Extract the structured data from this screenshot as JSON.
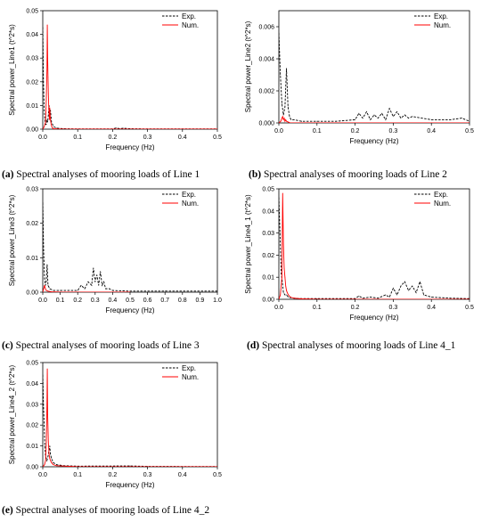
{
  "chart_data": [
    {
      "id": "a",
      "type": "line",
      "caption_label": "(a)",
      "caption_text": "Spectral analyses of mooring loads of Line 1",
      "xlabel": "Frequency (Hz)",
      "ylabel": "Spectral power_Line1 (t^2*s)",
      "xlim": [
        0,
        0.5
      ],
      "ylim": [
        0,
        0.05
      ],
      "xticks": [
        "0.0",
        "0.1",
        "0.2",
        "0.3",
        "0.4",
        "0.5"
      ],
      "yticks": [
        "0.00",
        "0.01",
        "0.02",
        "0.03",
        "0.04",
        "0.05"
      ],
      "legend": [
        "Exp.",
        "Num."
      ],
      "legend_position": "top-right",
      "series": [
        {
          "name": "Exp.",
          "style": "dashed",
          "color": "#000000",
          "x": [
            0.0,
            0.002,
            0.004,
            0.006,
            0.008,
            0.01,
            0.012,
            0.014,
            0.016,
            0.018,
            0.02,
            0.022,
            0.025,
            0.028,
            0.032,
            0.04,
            0.06,
            0.1,
            0.2,
            0.21,
            0.22,
            0.23,
            0.25,
            0.3,
            0.4,
            0.5
          ],
          "y": [
            0.043,
            0.02,
            0.008,
            0.004,
            0.002,
            0.002,
            0.004,
            0.003,
            0.006,
            0.01,
            0.006,
            0.008,
            0.003,
            0.002,
            0.001,
            0.0004,
            0.0002,
            0.0001,
            0.0001,
            0.0005,
            0.0002,
            0.0004,
            0.0002,
            0.0001,
            0.0001,
            0.0001
          ]
        },
        {
          "name": "Num.",
          "style": "solid",
          "color": "#ff0000",
          "x": [
            0.0,
            0.004,
            0.008,
            0.01,
            0.012,
            0.013,
            0.014,
            0.015,
            0.016,
            0.017,
            0.018,
            0.019,
            0.02,
            0.021,
            0.022,
            0.024,
            0.026,
            0.028,
            0.03,
            0.04,
            0.06,
            0.1,
            0.3,
            0.5
          ],
          "y": [
            0.0,
            0.001,
            0.003,
            0.012,
            0.025,
            0.044,
            0.03,
            0.022,
            0.015,
            0.01,
            0.007,
            0.004,
            0.009,
            0.006,
            0.004,
            0.002,
            0.001,
            0.0005,
            0.0002,
            0.0001,
            0.0,
            0.0,
            0.0,
            0.0
          ]
        }
      ]
    },
    {
      "id": "b",
      "type": "line",
      "caption_label": "(b)",
      "caption_text": "Spectral analyses of mooring loads of Line 2",
      "xlabel": "Frequency (Hz)",
      "ylabel": "Spectral power_Line2 (t^2*s)",
      "xlim": [
        0,
        0.5
      ],
      "ylim": [
        0,
        0.007
      ],
      "xticks": [
        "0.0",
        "0.1",
        "0.2",
        "0.3",
        "0.4",
        "0.5"
      ],
      "yticks": [
        "0.000",
        "0.002",
        "0.004",
        "0.006"
      ],
      "legend": [
        "Exp.",
        "Num."
      ],
      "legend_position": "top-right",
      "series": [
        {
          "name": "Exp.",
          "style": "dashed",
          "color": "#000000",
          "x": [
            0.0,
            0.004,
            0.008,
            0.012,
            0.016,
            0.02,
            0.024,
            0.028,
            0.032,
            0.04,
            0.06,
            0.1,
            0.15,
            0.2,
            0.21,
            0.22,
            0.23,
            0.24,
            0.25,
            0.26,
            0.27,
            0.28,
            0.29,
            0.3,
            0.31,
            0.32,
            0.33,
            0.34,
            0.35,
            0.4,
            0.45,
            0.48,
            0.5
          ],
          "y": [
            0.0056,
            0.003,
            0.0012,
            0.0005,
            0.001,
            0.0034,
            0.001,
            0.0004,
            0.0002,
            0.0002,
            0.0001,
            0.0001,
            0.0001,
            0.0002,
            0.0006,
            0.0003,
            0.0007,
            0.0002,
            0.0005,
            0.0003,
            0.0006,
            0.0002,
            0.0009,
            0.0004,
            0.0007,
            0.0003,
            0.0005,
            0.0003,
            0.0004,
            0.0002,
            0.0002,
            0.0003,
            0.0001
          ]
        },
        {
          "name": "Num.",
          "style": "solid",
          "color": "#ff0000",
          "x": [
            0.0,
            0.005,
            0.008,
            0.01,
            0.012,
            0.014,
            0.016,
            0.018,
            0.02,
            0.025,
            0.03,
            0.04,
            0.1,
            0.3,
            0.5
          ],
          "y": [
            0.0,
            0.0001,
            0.0003,
            0.0004,
            0.0002,
            0.0003,
            0.0001,
            0.0002,
            0.0001,
            5e-05,
            0.0,
            0.0,
            0.0,
            0.0,
            0.0
          ]
        }
      ]
    },
    {
      "id": "c",
      "type": "line",
      "caption_label": "(c)",
      "caption_text": "Spectral analyses of mooring loads of Line 3",
      "xlabel": "Frequency (Hz)",
      "ylabel": "Spectral power_Line3 (t^2*s)",
      "xlim": [
        0,
        1.0
      ],
      "ylim": [
        0,
        0.03
      ],
      "xticks": [
        "0.0",
        "0.1",
        "0.2",
        "0.3",
        "0.4",
        "0.5",
        "0.6",
        "0.7",
        "0.8",
        "0.9",
        "1.0"
      ],
      "yticks": [
        "0.00",
        "0.01",
        "0.02",
        "0.03"
      ],
      "legend": [
        "Exp.",
        "Num."
      ],
      "legend_position": "top-right",
      "series": [
        {
          "name": "Exp.",
          "style": "dashed",
          "color": "#000000",
          "x": [
            0.0,
            0.005,
            0.01,
            0.015,
            0.02,
            0.025,
            0.03,
            0.04,
            0.06,
            0.1,
            0.15,
            0.2,
            0.22,
            0.24,
            0.26,
            0.28,
            0.29,
            0.3,
            0.31,
            0.32,
            0.33,
            0.34,
            0.35,
            0.36,
            0.38,
            0.4,
            0.5,
            0.7,
            1.0
          ],
          "y": [
            0.026,
            0.012,
            0.004,
            0.002,
            0.003,
            0.008,
            0.002,
            0.001,
            0.0005,
            0.0005,
            0.0005,
            0.0005,
            0.002,
            0.001,
            0.003,
            0.002,
            0.007,
            0.003,
            0.005,
            0.002,
            0.006,
            0.002,
            0.003,
            0.001,
            0.001,
            0.0005,
            0.0003,
            0.0003,
            0.0003
          ]
        },
        {
          "name": "Num.",
          "style": "solid",
          "color": "#ff0000",
          "x": [
            0.0,
            0.005,
            0.01,
            0.015,
            0.02,
            0.03,
            0.05,
            0.1,
            0.3,
            0.5
          ],
          "y": [
            0.0,
            0.001,
            0.002,
            0.001,
            0.0005,
            0.0003,
            0.0001,
            0.0,
            0.0,
            0.0
          ]
        }
      ]
    },
    {
      "id": "d",
      "type": "line",
      "caption_label": "(d)",
      "caption_text": "Spectral analyses of mooring loads of Line 4_1",
      "xlabel": "Frequency (Hz)",
      "ylabel": "Spectral power_Line4_1 (t^2*s)",
      "xlim": [
        0,
        0.5
      ],
      "ylim": [
        0,
        0.05
      ],
      "xticks": [
        "0.0",
        "0.1",
        "0.2",
        "0.3",
        "0.4",
        "0.5"
      ],
      "yticks": [
        "0.00",
        "0.01",
        "0.02",
        "0.03",
        "0.04",
        "0.05"
      ],
      "legend": [
        "Exp.",
        "Num."
      ],
      "legend_position": "top-right",
      "series": [
        {
          "name": "Exp.",
          "style": "dashed",
          "color": "#000000",
          "x": [
            0.0,
            0.003,
            0.006,
            0.009,
            0.012,
            0.016,
            0.02,
            0.025,
            0.03,
            0.04,
            0.06,
            0.1,
            0.2,
            0.21,
            0.22,
            0.24,
            0.26,
            0.28,
            0.29,
            0.3,
            0.31,
            0.32,
            0.33,
            0.34,
            0.35,
            0.36,
            0.37,
            0.38,
            0.4,
            0.45,
            0.5
          ],
          "y": [
            0.046,
            0.03,
            0.012,
            0.008,
            0.003,
            0.002,
            0.002,
            0.001,
            0.0008,
            0.0005,
            0.0003,
            0.0003,
            0.0003,
            0.0015,
            0.0005,
            0.001,
            0.0005,
            0.002,
            0.001,
            0.005,
            0.002,
            0.006,
            0.008,
            0.004,
            0.006,
            0.003,
            0.008,
            0.002,
            0.001,
            0.0005,
            0.0003
          ]
        },
        {
          "name": "Num.",
          "style": "solid",
          "color": "#ff0000",
          "x": [
            0.0,
            0.004,
            0.008,
            0.01,
            0.012,
            0.014,
            0.016,
            0.018,
            0.02,
            0.022,
            0.025,
            0.03,
            0.04,
            0.06,
            0.1,
            0.3,
            0.5
          ],
          "y": [
            0.0,
            0.002,
            0.01,
            0.048,
            0.025,
            0.014,
            0.01,
            0.006,
            0.004,
            0.003,
            0.002,
            0.001,
            0.0005,
            0.0002,
            0.0,
            0.0,
            0.0
          ]
        }
      ]
    },
    {
      "id": "e",
      "type": "line",
      "caption_label": "(e)",
      "caption_text": "Spectral analyses of mooring loads of Line 4_2",
      "xlabel": "Frequency (Hz)",
      "ylabel": "Spectral power_Line4_2 (t^2*s)",
      "xlim": [
        0,
        0.5
      ],
      "ylim": [
        0,
        0.05
      ],
      "xticks": [
        "0.0",
        "0.1",
        "0.2",
        "0.3",
        "0.4",
        "0.5"
      ],
      "yticks": [
        "0.00",
        "0.01",
        "0.02",
        "0.03",
        "0.04",
        "0.05"
      ],
      "legend": [
        "Exp.",
        "Num."
      ],
      "legend_position": "top-right",
      "series": [
        {
          "name": "Exp.",
          "style": "dashed",
          "color": "#000000",
          "x": [
            0.0,
            0.002,
            0.004,
            0.006,
            0.008,
            0.01,
            0.012,
            0.015,
            0.018,
            0.02,
            0.022,
            0.025,
            0.03,
            0.04,
            0.06,
            0.1,
            0.25,
            0.3,
            0.5
          ],
          "y": [
            0.044,
            0.03,
            0.02,
            0.01,
            0.005,
            0.004,
            0.003,
            0.005,
            0.008,
            0.01,
            0.006,
            0.004,
            0.002,
            0.001,
            0.0005,
            0.0003,
            0.0004,
            0.0002,
            0.0001
          ]
        },
        {
          "name": "Num.",
          "style": "solid",
          "color": "#ff0000",
          "x": [
            0.0,
            0.005,
            0.008,
            0.01,
            0.012,
            0.013,
            0.014,
            0.016,
            0.018,
            0.02,
            0.022,
            0.025,
            0.03,
            0.04,
            0.1,
            0.3,
            0.5
          ],
          "y": [
            0.0,
            0.001,
            0.003,
            0.01,
            0.03,
            0.047,
            0.025,
            0.012,
            0.006,
            0.004,
            0.003,
            0.002,
            0.001,
            0.0005,
            0.0,
            0.0,
            0.0
          ]
        }
      ]
    }
  ]
}
